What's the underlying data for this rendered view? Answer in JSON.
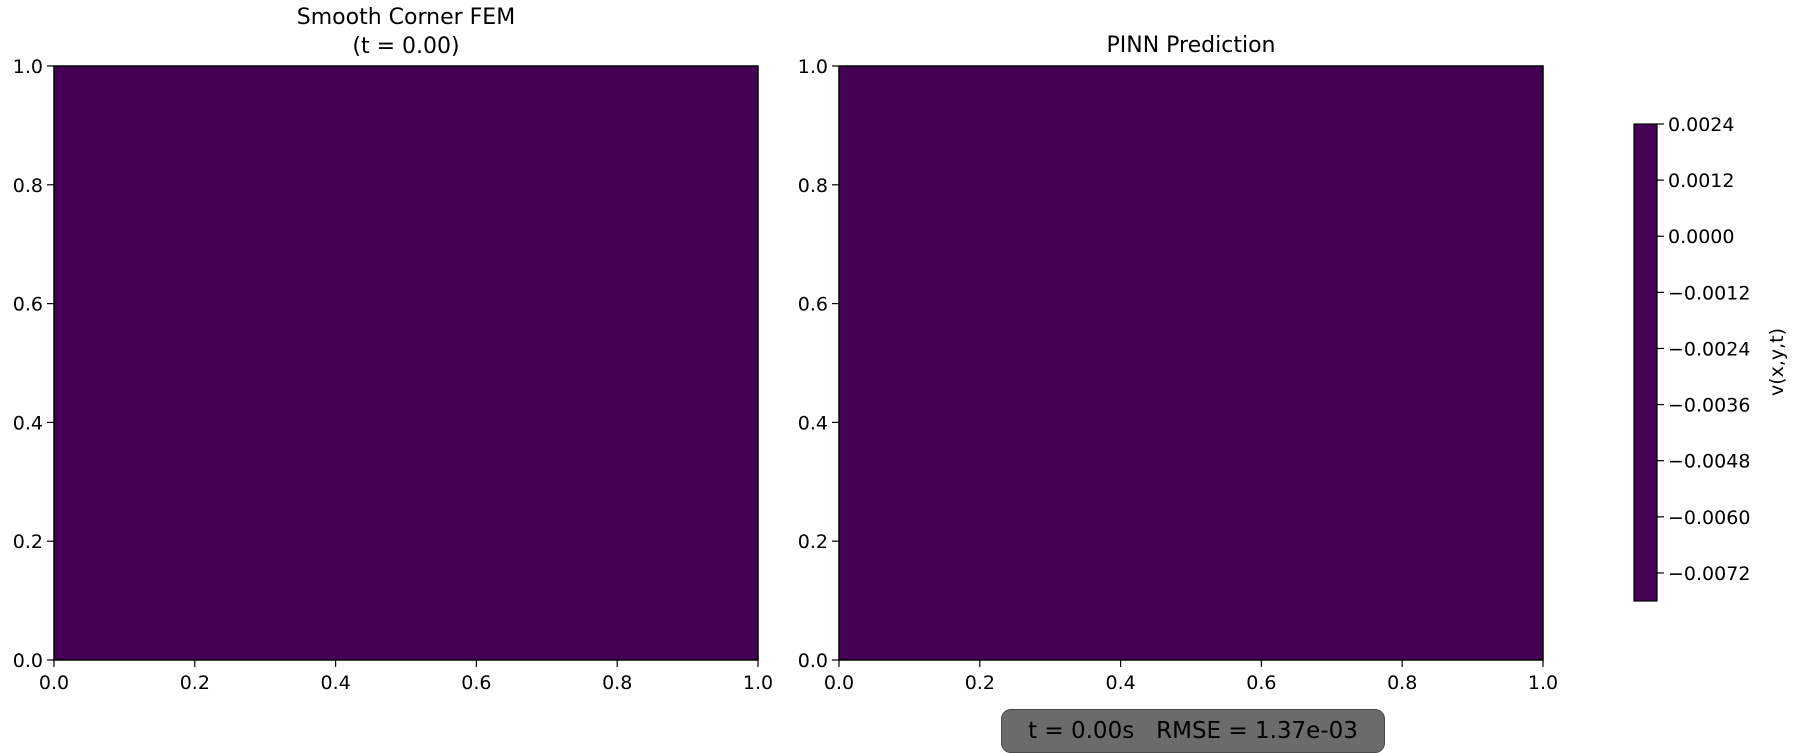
{
  "chart_data": [
    {
      "type": "heatmap",
      "title_line1": "Smooth Corner FEM",
      "title_line2": "(t = 0.00)",
      "xlim": [
        0.0,
        1.0
      ],
      "ylim": [
        0.0,
        1.0
      ],
      "x_ticks": [
        "0.0",
        "0.2",
        "0.4",
        "0.6",
        "0.8",
        "1.0"
      ],
      "y_ticks": [
        "0.0",
        "0.2",
        "0.4",
        "0.6",
        "0.8",
        "1.0"
      ],
      "field_color": "#440154",
      "field_value": "uniform (minimum of color scale)"
    },
    {
      "type": "heatmap",
      "title_line1": "PINN Prediction",
      "title_line2": "",
      "xlim": [
        0.0,
        1.0
      ],
      "ylim": [
        0.0,
        1.0
      ],
      "x_ticks": [
        "0.0",
        "0.2",
        "0.4",
        "0.6",
        "0.8",
        "1.0"
      ],
      "y_ticks": [
        "0.0",
        "0.2",
        "0.4",
        "0.6",
        "0.8",
        "1.0"
      ],
      "field_color": "#440154",
      "field_value": "uniform (minimum of color scale)"
    }
  ],
  "colorbar": {
    "label": "v(x,y,t)",
    "range": [
      -0.0078,
      0.0024
    ],
    "ticks": [
      "0.0024",
      "0.0012",
      "0.0000",
      "−0.0012",
      "−0.0024",
      "−0.0036",
      "−0.0048",
      "−0.0060",
      "−0.0072"
    ],
    "tick_values": [
      0.0024,
      0.0012,
      0.0,
      -0.0012,
      -0.0024,
      -0.0036,
      -0.0048,
      -0.006,
      -0.0072
    ],
    "color": "#440154"
  },
  "status": {
    "time": "t = 0.00s",
    "rmse": "RMSE = 1.37e-03",
    "background": "#6b6b6b"
  }
}
